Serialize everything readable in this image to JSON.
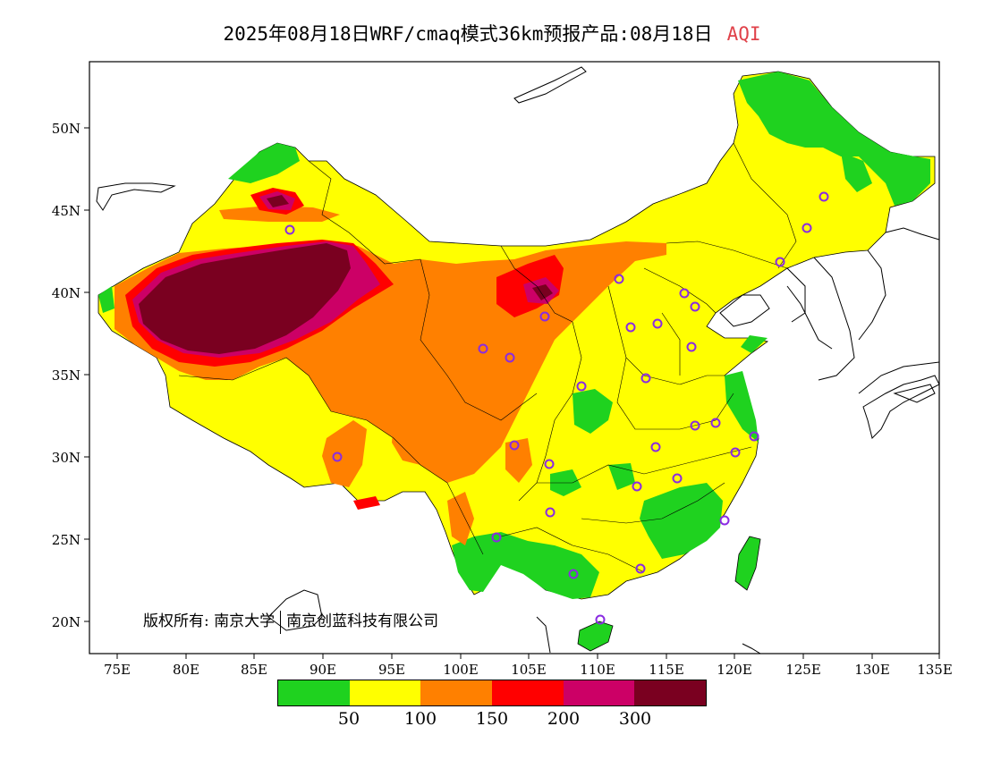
{
  "title": {
    "main": "2025年08月18日WRF/cmaq模式36km预报产品:08月18日",
    "variable": "AQI"
  },
  "axes": {
    "lat_labels": [
      "50N",
      "45N",
      "40N",
      "35N",
      "30N",
      "25N",
      "20N"
    ],
    "lon_labels": [
      "75E",
      "80E",
      "85E",
      "90E",
      "95E",
      "100E",
      "105E",
      "110E",
      "115E",
      "120E",
      "125E",
      "130E",
      "135E"
    ]
  },
  "copyright": {
    "owner_label": "版权所有:",
    "org1": "南京大学",
    "org2": "南京创蓝科技有限公司"
  },
  "legend": {
    "colors": [
      "#1fd21f",
      "#ffff00",
      "#ff8000",
      "#ff0000",
      "#cc0066",
      "#7a0020"
    ],
    "labels": [
      "50",
      "100",
      "150",
      "200",
      "300"
    ]
  },
  "colors": {
    "good": "#1fd21f",
    "moderate": "#ffff00",
    "sensitive": "#ff8000",
    "unhealthy": "#ff0000",
    "very_unhealthy": "#cc0066",
    "hazardous": "#7a0020",
    "city_marker": "#8a2be2"
  }
}
